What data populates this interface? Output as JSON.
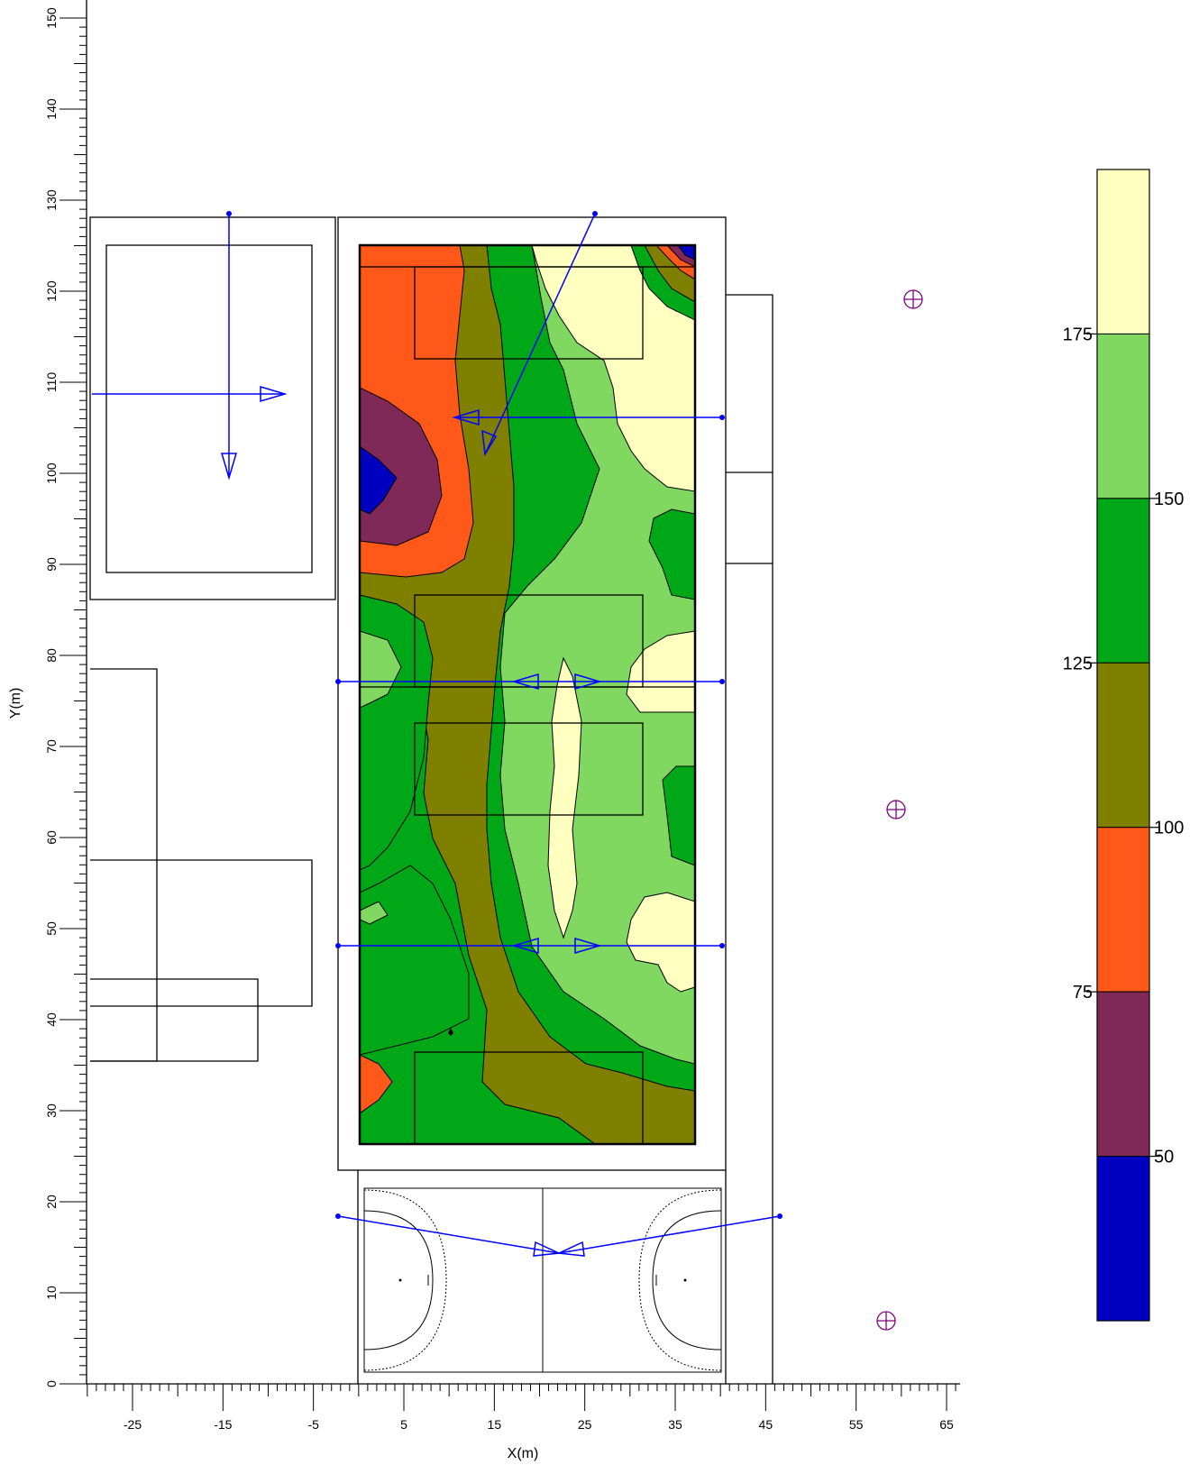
{
  "axes": {
    "x_label": "X(m)",
    "y_label": "Y(m)",
    "x_ticks": [
      "-25",
      "-15",
      "-5",
      "5",
      "15",
      "25",
      "35",
      "45",
      "55",
      "65"
    ],
    "y_ticks": [
      "0",
      "10",
      "20",
      "30",
      "40",
      "50",
      "60",
      "70",
      "80",
      "90",
      "100",
      "110",
      "120",
      "130",
      "140",
      "150"
    ]
  },
  "colorbar": {
    "labels": [
      "175",
      "150",
      "125",
      "100",
      "75",
      "50"
    ],
    "colors": [
      "#FFFFC0",
      "#80D860",
      "#00A818",
      "#808000",
      "#FF5818",
      "#802858",
      "#0000C0"
    ]
  },
  "colors": {
    "outline": "#000000",
    "luminaire": "#0000FF",
    "marker": "#800080"
  },
  "markers": [
    "target-marker",
    "target-marker",
    "target-marker"
  ]
}
